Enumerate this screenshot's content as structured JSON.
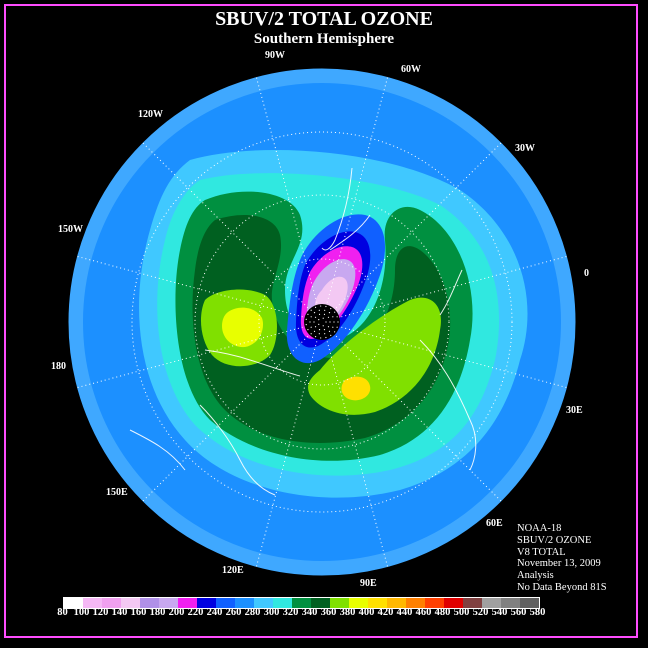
{
  "title": "SBUV/2 TOTAL OZONE",
  "subtitle": "Southern Hemisphere",
  "longitude_labels": [
    "90W",
    "60W",
    "30W",
    "0",
    "30E",
    "60E",
    "90E",
    "120E",
    "150E",
    "180",
    "150W",
    "120W"
  ],
  "info_lines": [
    "NOAA-18",
    "SBUV/2 OZONE",
    "V8 TOTAL",
    "November 13, 2009",
    "Analysis",
    "No Data Beyond 81S"
  ],
  "colorbar": {
    "labels": [
      "80",
      "100",
      "120",
      "140",
      "160",
      "180",
      "200",
      "220",
      "240",
      "260",
      "280",
      "300",
      "320",
      "340",
      "360",
      "380",
      "400",
      "420",
      "440",
      "460",
      "480",
      "500",
      "520",
      "540",
      "560",
      "580"
    ],
    "colors": [
      "#ffffff",
      "#f5b8f5",
      "#f0a0ef",
      "#f3c8f3",
      "#b090e8",
      "#c8a8f0",
      "#f020f0",
      "#0000e0",
      "#1060ff",
      "#1c90ff",
      "#40c8ff",
      "#30e8e0",
      "#009040",
      "#006020",
      "#80e000",
      "#e8ff00",
      "#ffe000",
      "#ffb800",
      "#ff8000",
      "#ff4000",
      "#e00000",
      "#804040",
      "#a0a0a0",
      "#808080",
      "#606060"
    ]
  },
  "colors": {
    "background": "#000000",
    "frame": "#ff4dff",
    "ocean_base": "#1c90ff",
    "outer_ring": "#40aaff",
    "no_data": "#000000"
  }
}
